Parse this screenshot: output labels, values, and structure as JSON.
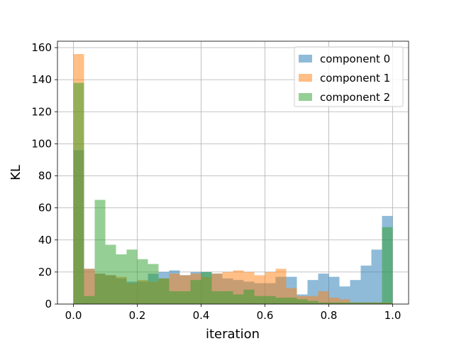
{
  "chart_data": {
    "type": "bar",
    "subtype": "histogram-overlay",
    "title": "",
    "xlabel": "iteration",
    "ylabel": "KL",
    "xlim": [
      -0.05,
      1.05
    ],
    "ylim": [
      0,
      164
    ],
    "x_ticks": [
      0.0,
      0.2,
      0.4,
      0.6,
      0.8,
      1.0
    ],
    "x_tick_labels": [
      "0.0",
      "0.2",
      "0.4",
      "0.6",
      "0.8",
      "1.0"
    ],
    "y_ticks": [
      0,
      20,
      40,
      60,
      80,
      100,
      120,
      140,
      160
    ],
    "y_tick_labels": [
      "0",
      "20",
      "40",
      "60",
      "80",
      "100",
      "120",
      "140",
      "160"
    ],
    "grid": true,
    "legend_position": "top-right",
    "bin_edges": [
      0.0,
      0.03333,
      0.06667,
      0.1,
      0.13333,
      0.16667,
      0.2,
      0.23333,
      0.26667,
      0.3,
      0.33333,
      0.36667,
      0.4,
      0.43333,
      0.46667,
      0.5,
      0.53333,
      0.56667,
      0.6,
      0.63333,
      0.66667,
      0.7,
      0.73333,
      0.76667,
      0.8,
      0.83333,
      0.86667,
      0.9,
      0.93333,
      0.96667,
      1.0
    ],
    "series": [
      {
        "name": "component 0",
        "color": "#1f77b4",
        "values": [
          96,
          22,
          19,
          18,
          16,
          14,
          14,
          19,
          20,
          21,
          18,
          20,
          20,
          19,
          16,
          15,
          14,
          13,
          13,
          17,
          17,
          6,
          15,
          19,
          17,
          11,
          15,
          24,
          34,
          55
        ]
      },
      {
        "name": "component 1",
        "color": "#ff7f0e",
        "values": [
          156,
          22,
          19,
          18,
          17,
          13,
          15,
          14,
          16,
          19,
          18,
          19,
          17,
          19,
          20,
          21,
          20,
          18,
          20,
          22,
          10,
          5,
          5,
          8,
          4,
          3,
          1,
          1,
          1,
          1
        ]
      },
      {
        "name": "component 2",
        "color": "#2ca02c",
        "values": [
          138,
          5,
          65,
          37,
          31,
          34,
          28,
          25,
          16,
          8,
          8,
          15,
          20,
          8,
          8,
          6,
          9,
          5,
          5,
          4,
          4,
          3,
          2,
          1,
          1,
          1,
          1,
          1,
          1,
          48
        ]
      }
    ]
  }
}
